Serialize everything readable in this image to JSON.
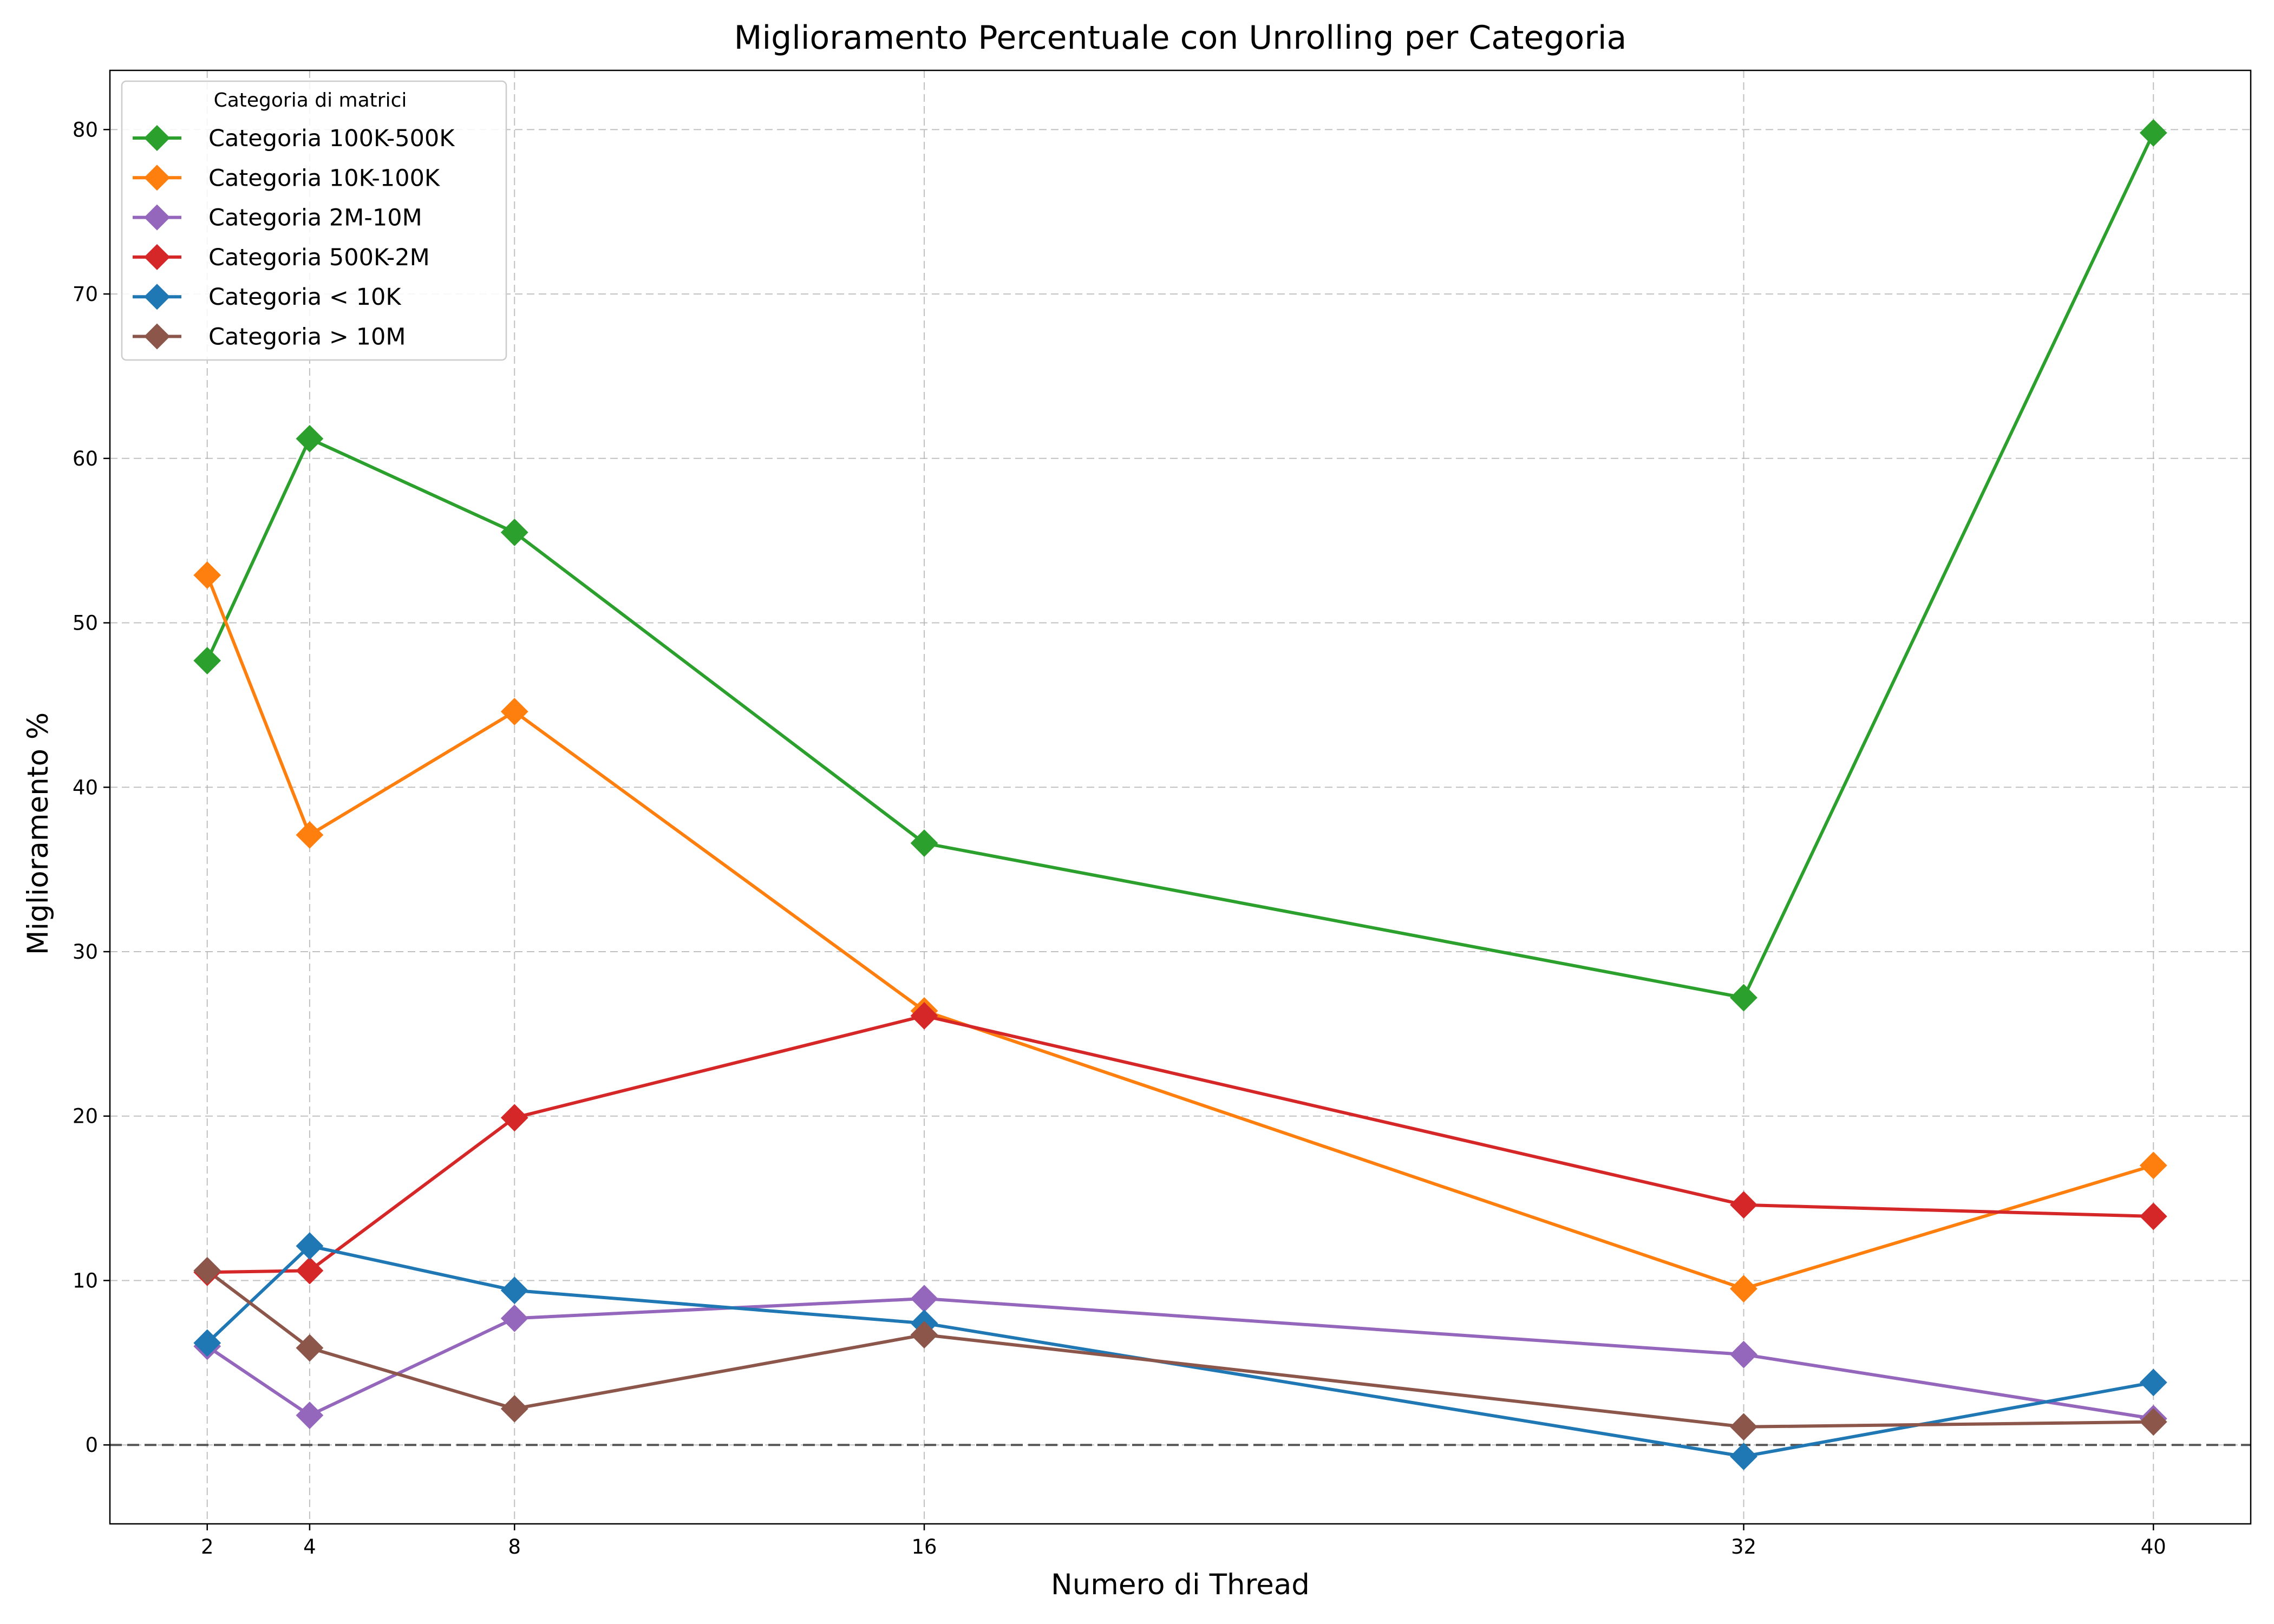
{
  "chart_data": {
    "type": "line",
    "title": "Miglioramento Percentuale con Unrolling per Categoria",
    "xlabel": "Numero di Thread",
    "ylabel": "Miglioramento %",
    "x": [
      2,
      4,
      8,
      16,
      32,
      40
    ],
    "x_ticks": [
      "2",
      "4",
      "8",
      "16",
      "32",
      "40"
    ],
    "xlim": [
      0.1,
      41.9
    ],
    "ylim": [
      -4.8,
      83.6
    ],
    "y_ticks": [
      0,
      10,
      20,
      30,
      40,
      50,
      60,
      70,
      80
    ],
    "grid": true,
    "reference_line_y": 0,
    "legend": {
      "title": "Categoria di matrici",
      "placement": "top-left"
    },
    "series": [
      {
        "name": "Categoria 100K-500K",
        "color": "#2ca02c",
        "values": [
          47.7,
          61.2,
          55.5,
          36.6,
          27.2,
          79.8
        ]
      },
      {
        "name": "Categoria 10K-100K",
        "color": "#ff7f0e",
        "values": [
          52.9,
          37.1,
          44.6,
          26.4,
          9.5,
          17.0
        ]
      },
      {
        "name": "Categoria 2M-10M",
        "color": "#9467bd",
        "values": [
          6.0,
          1.8,
          7.7,
          8.9,
          5.5,
          1.6
        ]
      },
      {
        "name": "Categoria 500K-2M",
        "color": "#d62728",
        "values": [
          10.5,
          10.6,
          19.9,
          26.1,
          14.6,
          13.9
        ]
      },
      {
        "name": "Categoria < 10K",
        "color": "#1f77b4",
        "values": [
          6.2,
          12.1,
          9.4,
          7.4,
          -0.7,
          3.8
        ]
      },
      {
        "name": "Categoria > 10M",
        "color": "#8c564b",
        "values": [
          10.6,
          5.9,
          2.2,
          6.7,
          1.1,
          1.4
        ]
      }
    ]
  }
}
